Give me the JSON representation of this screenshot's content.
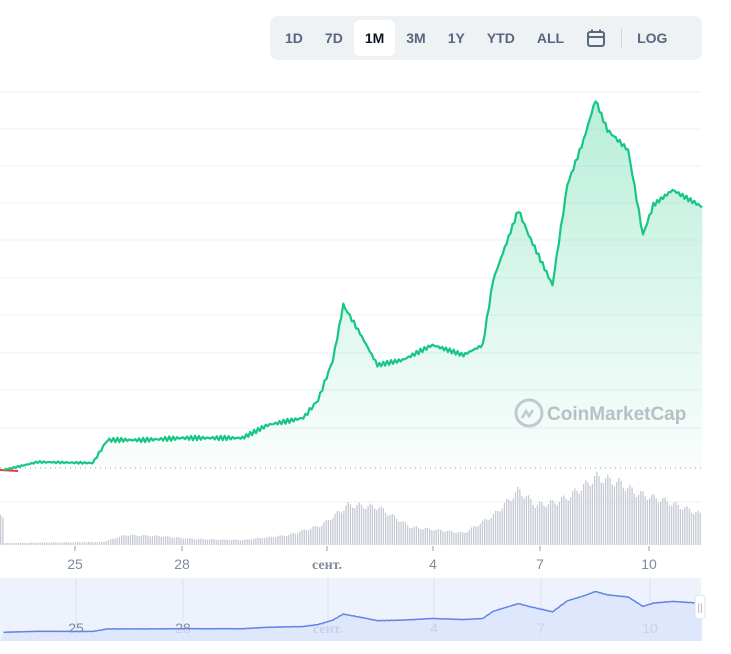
{
  "toolbar": {
    "ranges": [
      "1D",
      "7D",
      "1M",
      "3M",
      "1Y",
      "YTD",
      "ALL"
    ],
    "active": "1M",
    "calendar_icon": "calendar-icon",
    "log_label": "LOG"
  },
  "watermark": "CoinMarketCap",
  "colors": {
    "line_up": "#16c784",
    "line_down": "#ea3943",
    "volume": "#c5cad3",
    "navigator_line": "#6383e8",
    "navigator_bg": "#eef2fd"
  },
  "chart_data": {
    "type": "line",
    "xlabel": "",
    "ylabel": "",
    "x_ticks": [
      "25",
      "28",
      "сент.",
      "4",
      "7",
      "10"
    ],
    "grid": true,
    "log_scale": false,
    "y_axis_labels_visible": false,
    "baseline": "start price (dotted)",
    "price": {
      "x": [
        "2023-08-22T22",
        "2023-08-23T21",
        "2023-08-25T10",
        "2023-08-25T20",
        "2023-08-26T20",
        "2023-08-27T23",
        "2023-08-29T15",
        "2023-08-30T08",
        "2023-08-31T08",
        "2023-08-31T18",
        "2023-09-01T04",
        "2023-09-01T11",
        "2023-09-01T21",
        "2023-09-02T10",
        "2023-09-03T03",
        "2023-09-03T23",
        "2023-09-04T20",
        "2023-09-05T09",
        "2023-09-05T16",
        "2023-09-06T09",
        "2023-09-06T16",
        "2023-09-07T08",
        "2023-09-07T18",
        "2023-09-08T05",
        "2023-09-08T13",
        "2023-09-08T21",
        "2023-09-09T11",
        "2023-09-09T21",
        "2023-09-10T04",
        "2023-09-10T17",
        "2023-09-11T13"
      ],
      "values": [
        -2,
        6,
        5,
        28,
        28,
        30,
        30,
        43,
        50,
        68,
        108,
        163,
        138,
        103,
        108,
        123,
        113,
        123,
        188,
        258,
        233,
        183,
        283,
        328,
        368,
        338,
        318,
        233,
        263,
        278,
        261
      ]
    },
    "volume": {
      "x": [
        "2023-08-22T22",
        "2023-08-25T16",
        "2023-08-26T08",
        "2023-08-27T06",
        "2023-08-28T06",
        "2023-08-29T15",
        "2023-08-30T22",
        "2023-08-31T20",
        "2023-09-01T14",
        "2023-09-02T10",
        "2023-09-03T08",
        "2023-09-04T20",
        "2023-09-05T16",
        "2023-09-06T09",
        "2023-09-06T20",
        "2023-09-07T08",
        "2023-09-07T18",
        "2023-09-08T06",
        "2023-09-08T13",
        "2023-09-09T05",
        "2023-09-09T16",
        "2023-09-10T10",
        "2023-09-11T13"
      ],
      "values": [
        2,
        3,
        10,
        9,
        6,
        5,
        10,
        20,
        40,
        38,
        18,
        12,
        30,
        55,
        40,
        42,
        48,
        60,
        68,
        62,
        52,
        45,
        30
      ]
    }
  }
}
